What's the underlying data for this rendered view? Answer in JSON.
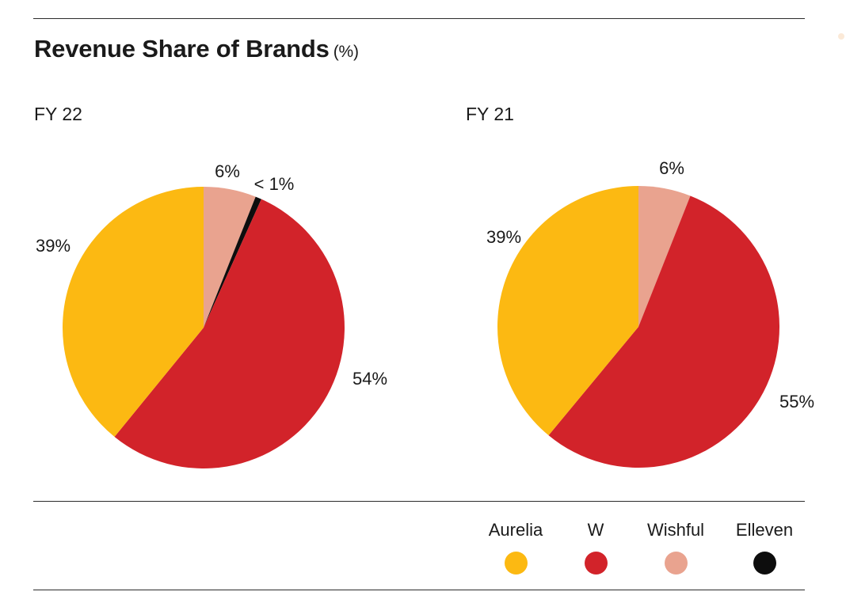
{
  "title": "Revenue Share of Brands",
  "title_unit": "(%)",
  "brand_colors": {
    "Aurelia": "#fcb912",
    "W": "#d2232a",
    "Wishful": "#e9a38f",
    "Elleven": "#0d0d0d"
  },
  "chart_data": [
    {
      "type": "pie",
      "title": "FY 22",
      "slices": [
        {
          "label": "Wishful",
          "value": 6,
          "data_label": "6%"
        },
        {
          "label": "Elleven",
          "value": 0.7,
          "data_label": "< 1%"
        },
        {
          "label": "W",
          "value": 54,
          "data_label": "54%"
        },
        {
          "label": "Aurelia",
          "value": 39,
          "data_label": "39%"
        }
      ]
    },
    {
      "type": "pie",
      "title": "FY 21",
      "slices": [
        {
          "label": "Wishful",
          "value": 6,
          "data_label": "6%"
        },
        {
          "label": "W",
          "value": 55,
          "data_label": "55%"
        },
        {
          "label": "Aurelia",
          "value": 39,
          "data_label": "39%"
        }
      ]
    }
  ],
  "legend": [
    {
      "label": "Aurelia",
      "color": "#fcb912"
    },
    {
      "label": "W",
      "color": "#d2232a"
    },
    {
      "label": "Wishful",
      "color": "#e9a38f"
    },
    {
      "label": "Elleven",
      "color": "#0d0d0d"
    }
  ]
}
